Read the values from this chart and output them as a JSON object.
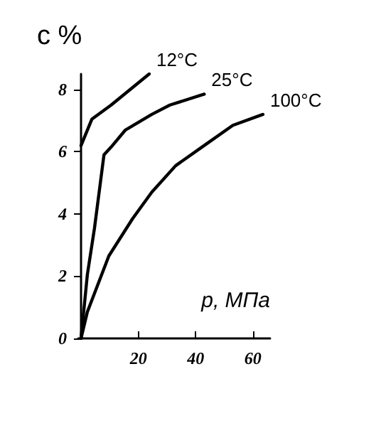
{
  "chart_data": {
    "type": "line",
    "xlabel": "p, МПа",
    "ylabel": "c %",
    "xlim": [
      -1,
      66
    ],
    "ylim": [
      0,
      8.5
    ],
    "xticks": [
      20,
      40,
      60
    ],
    "yticks": [
      0,
      2,
      4,
      6,
      8
    ],
    "grid": false,
    "legend": false,
    "marker": "none",
    "line_style": "solid",
    "series": [
      {
        "name": "12°C",
        "color": "#000000",
        "x": [
          0,
          3.8,
          10.5,
          23.8
        ],
        "values": [
          6.2,
          7.05,
          7.5,
          8.5
        ]
      },
      {
        "name": "25°C",
        "color": "#000000",
        "x": [
          0,
          2.2,
          4.7,
          8,
          10.5,
          15.5,
          24.7,
          31,
          43
        ],
        "values": [
          0,
          2.05,
          3.55,
          5.9,
          6.15,
          6.7,
          7.2,
          7.5,
          7.85
        ]
      },
      {
        "name": "100°C",
        "color": "#000000",
        "x": [
          0,
          2.2,
          9.7,
          18,
          24.7,
          33,
          43,
          53,
          63.5
        ],
        "values": [
          0,
          0.85,
          2.65,
          3.85,
          4.7,
          5.55,
          6.2,
          6.85,
          7.2
        ]
      }
    ]
  }
}
